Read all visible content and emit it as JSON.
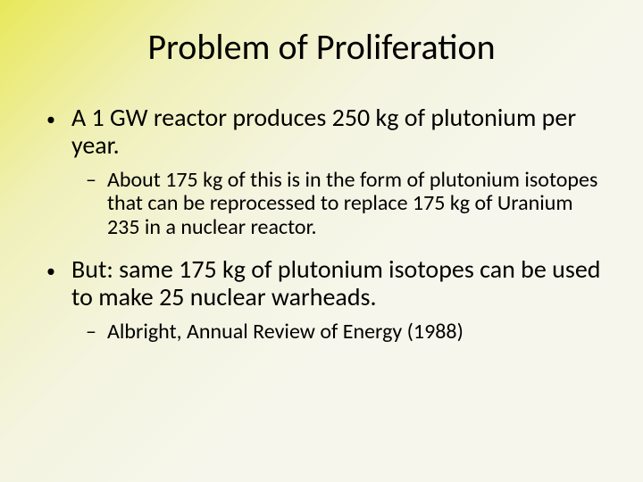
{
  "slide": {
    "title": "Problem of Proliferation",
    "bullets": [
      {
        "level": 1,
        "marker": "•",
        "text": "A 1 GW reactor produces 250 kg of plutonium per year."
      },
      {
        "level": 2,
        "marker": "–",
        "text": " About 175 kg of this is in the form of plutonium isotopes that can be reprocessed to replace 175 kg of Uranium 235 in a nuclear reactor."
      },
      {
        "level": 1,
        "marker": "•",
        "text": "But: same 175 kg of plutonium isotopes can be used to make 25 nuclear warheads."
      },
      {
        "level": 2,
        "marker": "–",
        "text": "Albright, Annual Review of Energy (1988)"
      }
    ]
  },
  "style": {
    "background_gradient": {
      "from": "#e8e85a",
      "to": "#f6f6ec",
      "angle_deg": 135
    },
    "title_fontsize": 40,
    "title_color": "#000000",
    "l1_fontsize": 28,
    "l2_fontsize": 24,
    "text_color": "#000000",
    "font_family": "Calibri"
  }
}
